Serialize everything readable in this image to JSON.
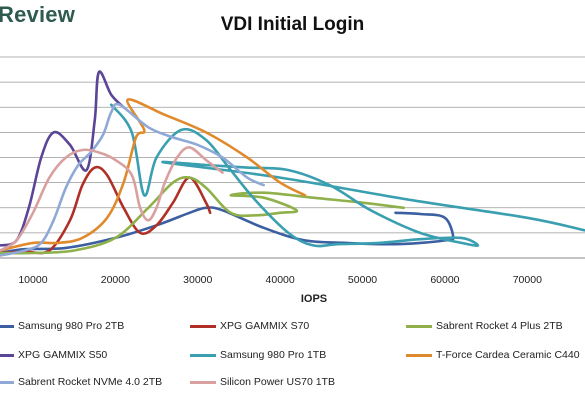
{
  "header": {
    "logo_text": "Review",
    "title": "VDI Initial Login"
  },
  "chart_data": {
    "type": "line",
    "title": "VDI Initial Login",
    "xlabel": "IOPS",
    "ylabel": "",
    "xlim": [
      6000,
      77000
    ],
    "ylim": [
      0,
      8
    ],
    "x_ticks": [
      10000,
      20000,
      30000,
      40000,
      50000,
      60000,
      70000
    ],
    "y_gridlines": [
      0,
      1,
      2,
      3,
      4,
      5,
      6,
      7,
      8
    ],
    "grid": true,
    "legend_position": "bottom",
    "series": [
      {
        "name": "Samsung 980 Pro 2TB",
        "color": "#3b5fa0",
        "points": [
          [
            6000,
            0.2
          ],
          [
            9000,
            0.35
          ],
          [
            14000,
            0.4
          ],
          [
            20000,
            0.8
          ],
          [
            25000,
            1.3
          ],
          [
            29000,
            1.8
          ],
          [
            31000,
            2.0
          ],
          [
            33000,
            1.9
          ],
          [
            38000,
            1.2
          ],
          [
            43000,
            0.7
          ],
          [
            48000,
            0.6
          ],
          [
            53000,
            0.55
          ],
          [
            57000,
            0.6
          ],
          [
            60000,
            0.7
          ],
          [
            61000,
            0.8
          ],
          [
            60000,
            1.6
          ],
          [
            57000,
            1.75
          ],
          [
            54000,
            1.8
          ]
        ]
      },
      {
        "name": "XPG GAMMIX S70",
        "color": "#b03027",
        "points": [
          [
            6000,
            0.2
          ],
          [
            9000,
            0.25
          ],
          [
            12000,
            0.3
          ],
          [
            14500,
            1.5
          ],
          [
            16000,
            2.9
          ],
          [
            17500,
            3.6
          ],
          [
            19000,
            3.3
          ],
          [
            21000,
            2.0
          ],
          [
            23000,
            1.0
          ],
          [
            25000,
            1.3
          ],
          [
            27000,
            2.2
          ],
          [
            29000,
            3.2
          ],
          [
            31000,
            2.2
          ],
          [
            31500,
            1.8
          ]
        ]
      },
      {
        "name": "Sabrent Rocket 4 Plus 2TB",
        "color": "#8fb04a",
        "points": [
          [
            6000,
            0.2
          ],
          [
            10000,
            0.2
          ],
          [
            15000,
            0.3
          ],
          [
            20000,
            0.8
          ],
          [
            24000,
            2.0
          ],
          [
            27000,
            3.0
          ],
          [
            29000,
            3.2
          ],
          [
            31000,
            2.8
          ],
          [
            34000,
            1.8
          ],
          [
            37000,
            1.7
          ],
          [
            40000,
            1.8
          ],
          [
            42000,
            1.9
          ],
          [
            38000,
            2.4
          ],
          [
            34000,
            2.5
          ],
          [
            38000,
            2.6
          ],
          [
            44000,
            2.4
          ],
          [
            50000,
            2.2
          ],
          [
            55000,
            2.0
          ]
        ]
      },
      {
        "name": "XPG GAMMIX S50",
        "color": "#5a4596",
        "points": [
          [
            6000,
            0.5
          ],
          [
            8000,
            0.7
          ],
          [
            9500,
            2.0
          ],
          [
            11000,
            4.0
          ],
          [
            12500,
            5.0
          ],
          [
            14500,
            4.5
          ],
          [
            16500,
            3.5
          ],
          [
            17500,
            5.5
          ],
          [
            18000,
            7.4
          ],
          [
            19500,
            6.5
          ],
          [
            21000,
            6.0
          ]
        ]
      },
      {
        "name": "Samsung 980 Pro 1TB",
        "color": "#3a9fb0",
        "points": [
          [
            19500,
            6.1
          ],
          [
            22000,
            5.0
          ],
          [
            23500,
            2.5
          ],
          [
            25000,
            4.0
          ],
          [
            28000,
            5.1
          ],
          [
            31000,
            4.7
          ],
          [
            34000,
            3.5
          ],
          [
            37000,
            2.3
          ],
          [
            41000,
            1.0
          ],
          [
            44000,
            0.5
          ],
          [
            47000,
            0.55
          ],
          [
            52000,
            0.6
          ],
          [
            57000,
            0.75
          ],
          [
            62000,
            0.8
          ],
          [
            64000,
            0.5
          ],
          [
            62000,
            0.6
          ],
          [
            57000,
            1.0
          ],
          [
            51000,
            1.9
          ],
          [
            46000,
            2.9
          ],
          [
            41000,
            3.5
          ],
          [
            36000,
            3.6
          ],
          [
            31000,
            3.7
          ],
          [
            26000,
            3.8
          ],
          [
            40000,
            3.2
          ],
          [
            56000,
            2.3
          ],
          [
            70000,
            1.6
          ],
          [
            77000,
            1.1
          ]
        ]
      },
      {
        "name": "T-Force Cardea Ceramic C440",
        "color": "#e08a2e",
        "points": [
          [
            6000,
            0.3
          ],
          [
            10000,
            0.6
          ],
          [
            13000,
            0.6
          ],
          [
            16000,
            0.8
          ],
          [
            19000,
            1.6
          ],
          [
            21000,
            3.0
          ],
          [
            22500,
            4.8
          ],
          [
            23500,
            5.1
          ],
          [
            21500,
            6.3
          ],
          [
            26000,
            5.7
          ],
          [
            31000,
            5.0
          ],
          [
            36000,
            4.0
          ],
          [
            40000,
            3.0
          ],
          [
            43000,
            2.5
          ]
        ]
      },
      {
        "name": "Sabrent Rocket NVMe 4.0 2TB",
        "color": "#8fa9d6",
        "points": [
          [
            6000,
            0.1
          ],
          [
            9000,
            0.3
          ],
          [
            11000,
            0.6
          ],
          [
            12500,
            1.5
          ],
          [
            14000,
            2.8
          ],
          [
            15500,
            3.7
          ],
          [
            17000,
            4.2
          ],
          [
            18500,
            4.9
          ],
          [
            19500,
            5.8
          ],
          [
            20500,
            6.1
          ],
          [
            24000,
            5.2
          ],
          [
            27000,
            4.8
          ],
          [
            30000,
            4.5
          ],
          [
            33000,
            4.0
          ],
          [
            36000,
            3.2
          ],
          [
            38000,
            2.9
          ]
        ]
      },
      {
        "name": "Silicon Power US70 1TB",
        "color": "#d9a0a0",
        "points": [
          [
            6000,
            0.3
          ],
          [
            8000,
            0.7
          ],
          [
            10000,
            1.8
          ],
          [
            12000,
            3.2
          ],
          [
            14000,
            4.0
          ],
          [
            16000,
            4.3
          ],
          [
            18000,
            4.2
          ],
          [
            20000,
            3.9
          ],
          [
            22000,
            3.3
          ],
          [
            23000,
            2.0
          ],
          [
            24000,
            1.5
          ],
          [
            25000,
            2.0
          ],
          [
            26000,
            3.0
          ],
          [
            27500,
            4.0
          ],
          [
            29000,
            4.4
          ],
          [
            31000,
            3.9
          ],
          [
            33000,
            3.4
          ]
        ]
      }
    ]
  }
}
